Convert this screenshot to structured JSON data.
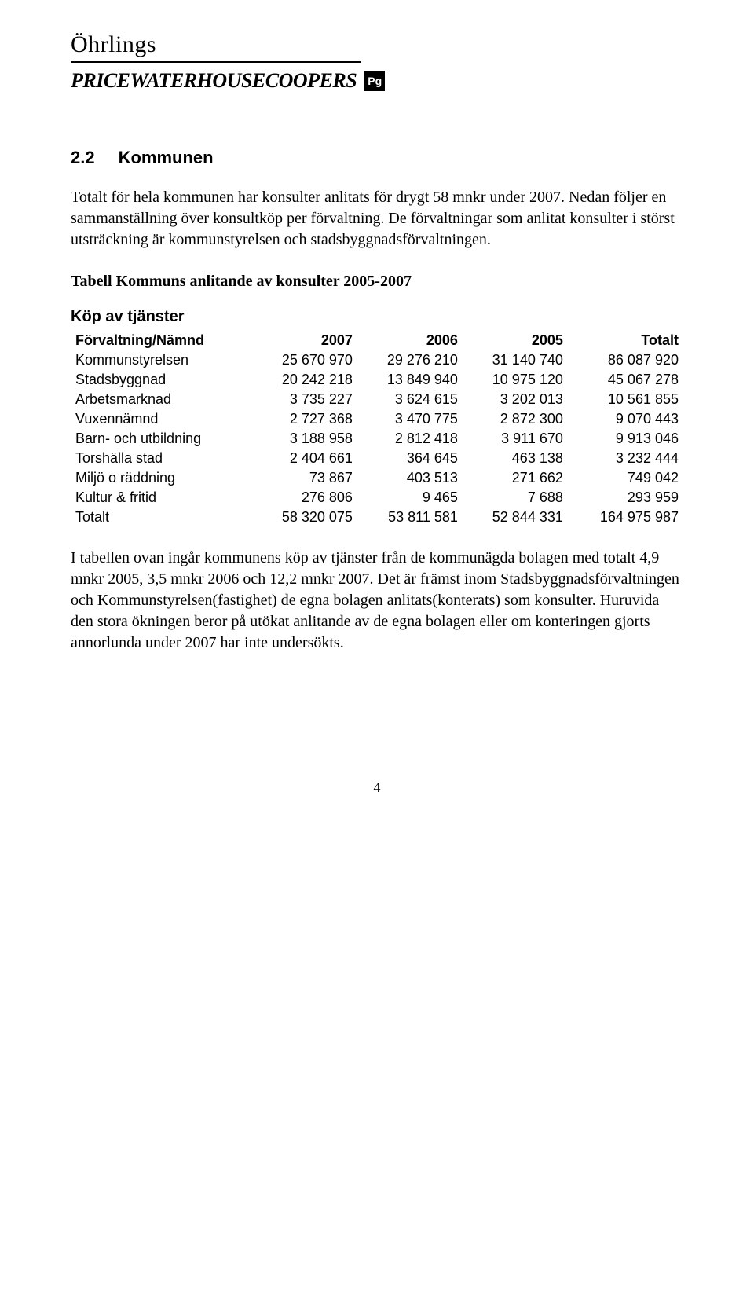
{
  "logo": {
    "top": "Öhrlings",
    "bottom": "PRICEWATERHOUSECOOPERS",
    "badge": "Pg"
  },
  "section": {
    "number": "2.2",
    "title": "Kommunen"
  },
  "para1": "Totalt för hela kommunen har konsulter anlitats för drygt 58 mnkr under 2007. Nedan följer en sammanställning över konsultköp per förvaltning. De förvaltningar som anlitat konsulter i störst utsträckning är kommunstyrelsen och stadsbyggnadsförvaltningen.",
  "table": {
    "caption": "Tabell Kommuns anlitande av konsulter 2005-2007",
    "title": "Köp av tjänster",
    "columns": [
      "Förvaltning/Nämnd",
      "2007",
      "2006",
      "2005",
      "Totalt"
    ],
    "rows": [
      [
        "Kommunstyrelsen",
        "25 670 970",
        "29 276 210",
        "31 140 740",
        "86 087 920"
      ],
      [
        "Stadsbyggnad",
        "20 242 218",
        "13 849 940",
        "10 975 120",
        "45 067 278"
      ],
      [
        "Arbetsmarknad",
        "3 735 227",
        "3 624 615",
        "3 202 013",
        "10 561 855"
      ],
      [
        "Vuxennämnd",
        "2 727 368",
        "3 470 775",
        "2 872 300",
        "9 070 443"
      ],
      [
        "Barn- och utbildning",
        "3 188 958",
        "2 812 418",
        "3 911 670",
        "9 913 046"
      ],
      [
        "Torshälla stad",
        "2 404 661",
        "364 645",
        "463 138",
        "3 232 444"
      ],
      [
        "Miljö o räddning",
        "73 867",
        "403 513",
        "271 662",
        "749 042"
      ],
      [
        "Kultur & fritid",
        "276 806",
        "9 465",
        "7 688",
        "293 959"
      ],
      [
        "Totalt",
        "58 320 075",
        "53 811 581",
        "52 844 331",
        "164 975 987"
      ]
    ]
  },
  "para2": "I tabellen ovan ingår kommunens köp av tjänster från de kommunägda bolagen med totalt 4,9 mnkr 2005, 3,5 mnkr 2006 och 12,2 mnkr 2007. Det är främst inom Stadsbyggnadsförvaltningen och Kommunstyrelsen(fastighet) de egna bolagen anlitats(konterats) som konsulter. Huruvida den stora ökningen beror på utökat anlitande av de egna bolagen eller om konteringen gjorts annorlunda under 2007 har inte undersökts.",
  "page_number": "4"
}
